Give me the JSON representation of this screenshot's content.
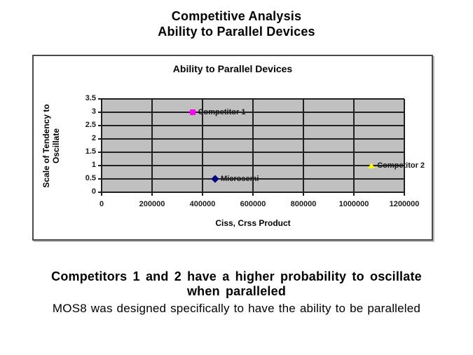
{
  "header": {
    "line1": "Competitive Analysis",
    "line2": "Ability to Parallel Devices"
  },
  "chart_data": {
    "type": "scatter",
    "title": "Ability to Parallel Devices",
    "xlabel": "Ciss, Crss Product",
    "ylabel": "Scale of Tendency to Oscillate",
    "ylabel_lines": [
      "Scale of Tendency to",
      "Oscillate"
    ],
    "xlim": [
      0,
      1200000
    ],
    "ylim": [
      0,
      3.5
    ],
    "x_ticks": [
      0,
      200000,
      400000,
      600000,
      800000,
      1000000,
      1200000
    ],
    "y_ticks": [
      0,
      0.5,
      1,
      1.5,
      2,
      2.5,
      3,
      3.5
    ],
    "grid": true,
    "legend": "none",
    "plot_bg": "#c0c0c0",
    "series": [
      {
        "name": "Competitor 1",
        "x": 360000,
        "y": 3,
        "marker": "square",
        "color": "#ff00ff"
      },
      {
        "name": "Microsemi",
        "x": 450000,
        "y": 0.5,
        "marker": "diamond",
        "color": "#000080"
      },
      {
        "name": "Competitor 2",
        "x": 1070000,
        "y": 1,
        "marker": "triangle",
        "color": "#ffff00"
      }
    ]
  },
  "caption": {
    "bold_line1": "Competitors 1 and 2 have a higher probability to oscillate",
    "bold_line2": "when paralleled",
    "normal_text": "MOS8 was designed specifically to have the ability to be paralleled"
  }
}
